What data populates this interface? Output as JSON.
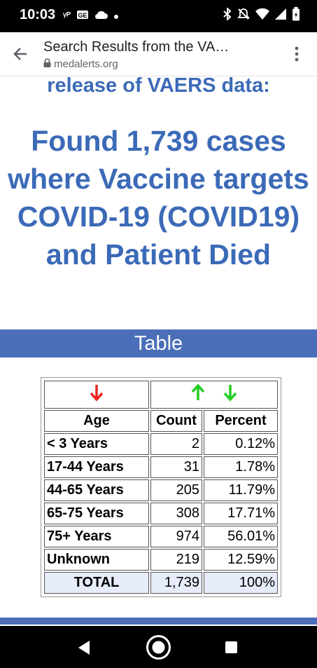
{
  "status_bar": {
    "time": "10:03",
    "left_icons": [
      "vpn-key-icon",
      "mail-badge-icon",
      "cloud-icon",
      "dot-icon"
    ],
    "right_icons": [
      "bluetooth-icon",
      "mute-icon",
      "wifi-icon",
      "signal-icon",
      "battery-icon"
    ]
  },
  "browser": {
    "page_title": "Search Results from the VA…",
    "domain": "medalerts.org"
  },
  "page": {
    "subheading": "release of VAERS data:",
    "headline": "Found 1,739 cases where Vaccine targets COVID-19 (COVID19) and Patient Died",
    "section_label": "Table"
  },
  "table": {
    "headers": {
      "age": "Age",
      "count": "Count",
      "percent": "Percent"
    },
    "sort_arrows": {
      "age": "down",
      "count": "up",
      "percent": "down"
    },
    "rows": [
      {
        "age": "< 3 Years",
        "count": "2",
        "percent": "0.12%"
      },
      {
        "age": "17-44 Years",
        "count": "31",
        "percent": "1.78%"
      },
      {
        "age": "44-65 Years",
        "count": "205",
        "percent": "11.79%"
      },
      {
        "age": "65-75 Years",
        "count": "308",
        "percent": "17.71%"
      },
      {
        "age": "75+ Years",
        "count": "974",
        "percent": "56.01%"
      },
      {
        "age": "Unknown",
        "count": "219",
        "percent": "12.59%"
      }
    ],
    "total": {
      "label": "TOTAL",
      "count": "1,739",
      "percent": "100%"
    }
  },
  "colors": {
    "heading_blue": "#3b6ab7",
    "bar_blue": "#4a6fb8",
    "arrow_red": "#e8261e",
    "arrow_green": "#22cc22",
    "total_row_bg": "#e6ecfa"
  },
  "nav_bar": {
    "buttons": [
      "back-triangle-icon",
      "home-circle-icon",
      "recents-square-icon"
    ]
  }
}
